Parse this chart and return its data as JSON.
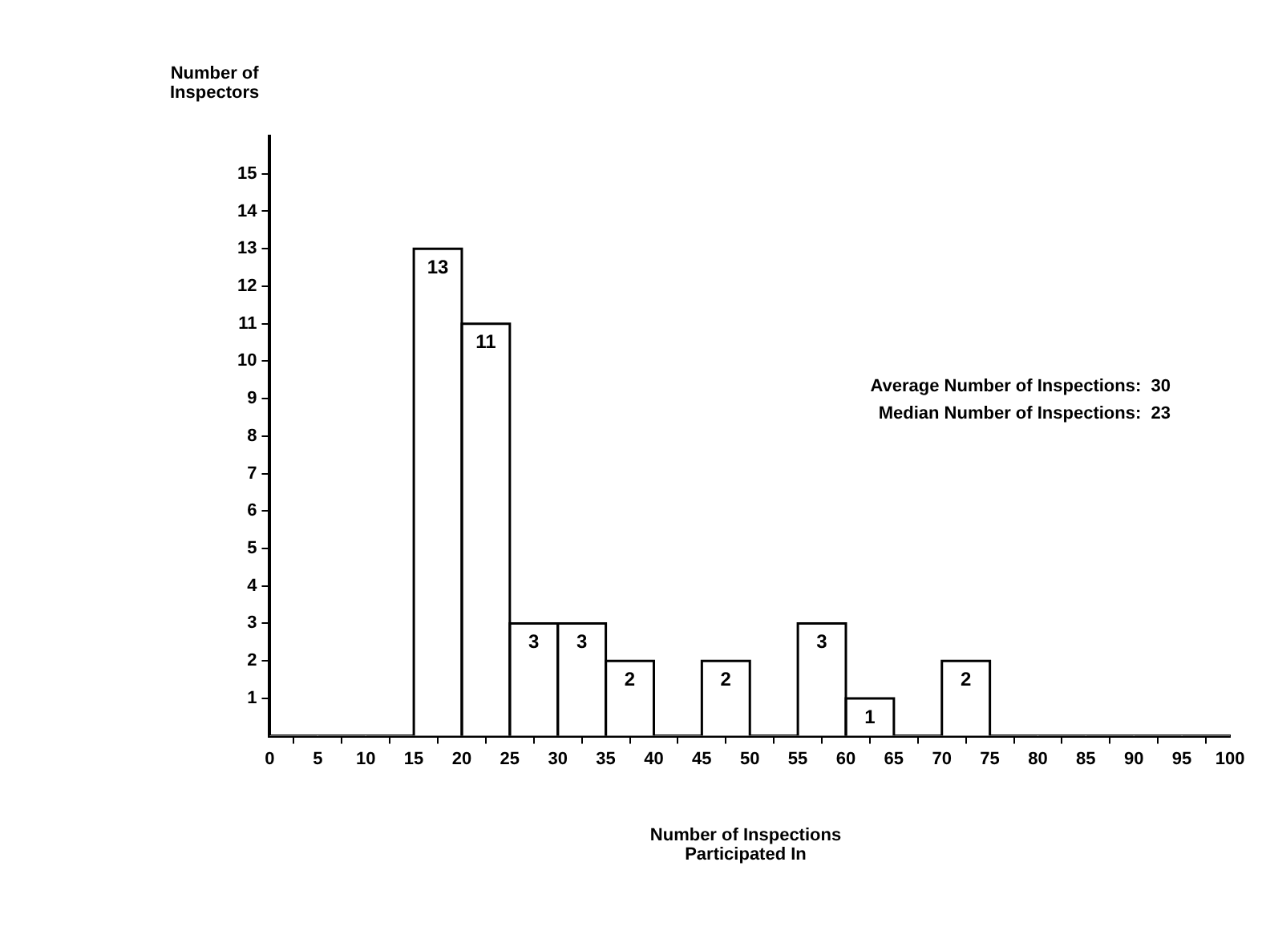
{
  "chart_data": {
    "type": "histogram",
    "xlabel": "Number of Inspections Participated In",
    "ylabel": "Number of Inspectors",
    "bins": [
      0,
      5,
      10,
      15,
      20,
      25,
      30,
      35,
      40,
      45,
      50,
      55,
      60,
      65,
      70,
      75,
      80,
      85,
      90,
      95,
      100
    ],
    "values": [
      0,
      0,
      0,
      13,
      11,
      3,
      3,
      2,
      0,
      2,
      0,
      3,
      1,
      0,
      2,
      0,
      0,
      0,
      0,
      0
    ],
    "value_labels": [
      null,
      null,
      null,
      "13",
      "11",
      "3",
      "3",
      "2",
      null,
      "2",
      null,
      "3",
      "1",
      null,
      "2",
      null,
      null,
      null,
      null,
      null
    ],
    "color": "#ffffff",
    "xlim": [
      0,
      100
    ],
    "xticks": [
      0,
      5,
      10,
      15,
      20,
      25,
      30,
      35,
      40,
      45,
      50,
      55,
      60,
      65,
      70,
      75,
      80,
      85,
      90,
      95,
      100
    ],
    "ylim": [
      0,
      16
    ],
    "yticks": [
      1,
      2,
      3,
      4,
      5,
      6,
      7,
      8,
      9,
      10,
      11,
      12,
      13,
      14,
      15
    ],
    "grid": false,
    "legend": false,
    "annotations": [
      "Average Number of Inspections:  30",
      "Median Number of Inspections:  23"
    ]
  }
}
